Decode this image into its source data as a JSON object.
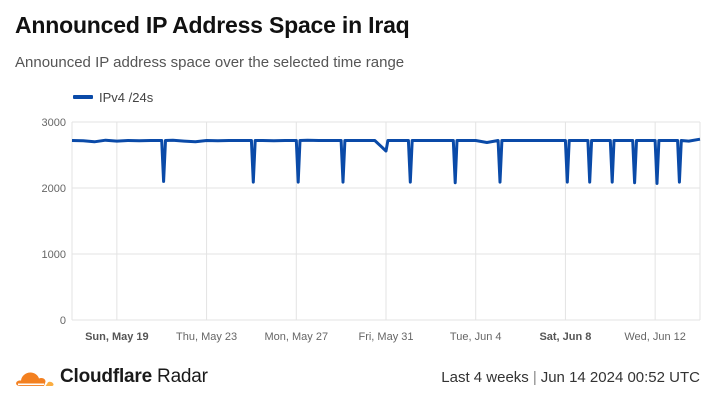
{
  "header": {
    "title": "Announced IP Address Space in Iraq",
    "subtitle": "Announced IP address space over the selected time range"
  },
  "footer": {
    "brand_name": "Cloudflare",
    "brand_product": "Radar",
    "range_label": "Last 4 weeks",
    "separator": "|",
    "timestamp": "Jun 14 2024 00:52 UTC"
  },
  "colors": {
    "series": "#0a4aa8",
    "grid": "#e3e3e3",
    "logo_orange": "#f38020",
    "logo_orange_light": "#fbad41"
  },
  "icons": {
    "logo": "cloudflare-cloud-icon"
  },
  "chart_data": {
    "type": "line",
    "title": "Announced IP Address Space in Iraq",
    "xlabel": "",
    "ylabel": "",
    "x_range": [
      "2024-05-17",
      "2024-06-14"
    ],
    "ylim": [
      0,
      3000
    ],
    "y_ticks": [
      0,
      1000,
      2000,
      3000
    ],
    "x_ticks": [
      {
        "date": "2024-05-19",
        "label": "Sun, May 19",
        "bold": true
      },
      {
        "date": "2024-05-23",
        "label": "Thu, May 23",
        "bold": false
      },
      {
        "date": "2024-05-27",
        "label": "Mon, May 27",
        "bold": false
      },
      {
        "date": "2024-05-31",
        "label": "Fri, May 31",
        "bold": false
      },
      {
        "date": "2024-06-04",
        "label": "Tue, Jun 4",
        "bold": false
      },
      {
        "date": "2024-06-08",
        "label": "Sat, Jun 8",
        "bold": true
      },
      {
        "date": "2024-06-12",
        "label": "Wed, Jun 12",
        "bold": false
      }
    ],
    "grid": true,
    "legend_position": "top-left",
    "series": [
      {
        "name": "IPv4 /24s",
        "color": "#0a4aa8",
        "points": [
          [
            "2024-05-17T00:00",
            2720
          ],
          [
            "2024-05-17T12:00",
            2715
          ],
          [
            "2024-05-18T00:00",
            2700
          ],
          [
            "2024-05-18T12:00",
            2725
          ],
          [
            "2024-05-19T00:00",
            2710
          ],
          [
            "2024-05-19T12:00",
            2720
          ],
          [
            "2024-05-20T00:00",
            2715
          ],
          [
            "2024-05-20T12:00",
            2720
          ],
          [
            "2024-05-21T00:00",
            2720
          ],
          [
            "2024-05-21T02:00",
            2100
          ],
          [
            "2024-05-21T04:00",
            2720
          ],
          [
            "2024-05-21T12:00",
            2725
          ],
          [
            "2024-05-22T00:00",
            2710
          ],
          [
            "2024-05-22T12:00",
            2700
          ],
          [
            "2024-05-23T00:00",
            2720
          ],
          [
            "2024-05-23T12:00",
            2715
          ],
          [
            "2024-05-24T00:00",
            2720
          ],
          [
            "2024-05-24T12:00",
            2720
          ],
          [
            "2024-05-25T00:00",
            2720
          ],
          [
            "2024-05-25T02:00",
            2090
          ],
          [
            "2024-05-25T04:00",
            2720
          ],
          [
            "2024-05-25T12:00",
            2720
          ],
          [
            "2024-05-26T00:00",
            2715
          ],
          [
            "2024-05-26T12:00",
            2720
          ],
          [
            "2024-05-27T00:00",
            2720
          ],
          [
            "2024-05-27T02:00",
            2090
          ],
          [
            "2024-05-27T04:00",
            2720
          ],
          [
            "2024-05-27T12:00",
            2725
          ],
          [
            "2024-05-28T00:00",
            2720
          ],
          [
            "2024-05-28T12:00",
            2720
          ],
          [
            "2024-05-29T00:00",
            2720
          ],
          [
            "2024-05-29T02:00",
            2090
          ],
          [
            "2024-05-29T04:00",
            2720
          ],
          [
            "2024-05-29T12:00",
            2720
          ],
          [
            "2024-05-30T00:00",
            2720
          ],
          [
            "2024-05-30T12:00",
            2720
          ],
          [
            "2024-05-31T00:00",
            2560
          ],
          [
            "2024-05-31T02:00",
            2720
          ],
          [
            "2024-05-31T12:00",
            2720
          ],
          [
            "2024-06-01T00:00",
            2720
          ],
          [
            "2024-06-01T02:00",
            2090
          ],
          [
            "2024-06-01T04:00",
            2720
          ],
          [
            "2024-06-01T12:00",
            2720
          ],
          [
            "2024-06-02T00:00",
            2720
          ],
          [
            "2024-06-02T12:00",
            2720
          ],
          [
            "2024-06-03T00:00",
            2720
          ],
          [
            "2024-06-03T02:00",
            2080
          ],
          [
            "2024-06-03T04:00",
            2720
          ],
          [
            "2024-06-03T12:00",
            2720
          ],
          [
            "2024-06-04T00:00",
            2720
          ],
          [
            "2024-06-04T12:00",
            2690
          ],
          [
            "2024-06-05T00:00",
            2720
          ],
          [
            "2024-06-05T02:00",
            2090
          ],
          [
            "2024-06-05T04:00",
            2720
          ],
          [
            "2024-06-05T12:00",
            2720
          ],
          [
            "2024-06-06T00:00",
            2720
          ],
          [
            "2024-06-06T12:00",
            2720
          ],
          [
            "2024-06-07T00:00",
            2720
          ],
          [
            "2024-06-07T12:00",
            2720
          ],
          [
            "2024-06-08T00:00",
            2720
          ],
          [
            "2024-06-08T02:00",
            2090
          ],
          [
            "2024-06-08T04:00",
            2720
          ],
          [
            "2024-06-08T12:00",
            2720
          ],
          [
            "2024-06-09T00:00",
            2720
          ],
          [
            "2024-06-09T02:00",
            2090
          ],
          [
            "2024-06-09T04:00",
            2720
          ],
          [
            "2024-06-09T12:00",
            2720
          ],
          [
            "2024-06-10T00:00",
            2720
          ],
          [
            "2024-06-10T02:00",
            2090
          ],
          [
            "2024-06-10T04:00",
            2720
          ],
          [
            "2024-06-10T12:00",
            2720
          ],
          [
            "2024-06-11T00:00",
            2720
          ],
          [
            "2024-06-11T02:00",
            2080
          ],
          [
            "2024-06-11T04:00",
            2720
          ],
          [
            "2024-06-11T12:00",
            2720
          ],
          [
            "2024-06-12T00:00",
            2720
          ],
          [
            "2024-06-12T02:00",
            2070
          ],
          [
            "2024-06-12T04:00",
            2720
          ],
          [
            "2024-06-12T12:00",
            2720
          ],
          [
            "2024-06-13T00:00",
            2720
          ],
          [
            "2024-06-13T02:00",
            2090
          ],
          [
            "2024-06-13T04:00",
            2720
          ],
          [
            "2024-06-13T12:00",
            2710
          ],
          [
            "2024-06-14T00:00",
            2740
          ]
        ]
      }
    ]
  }
}
